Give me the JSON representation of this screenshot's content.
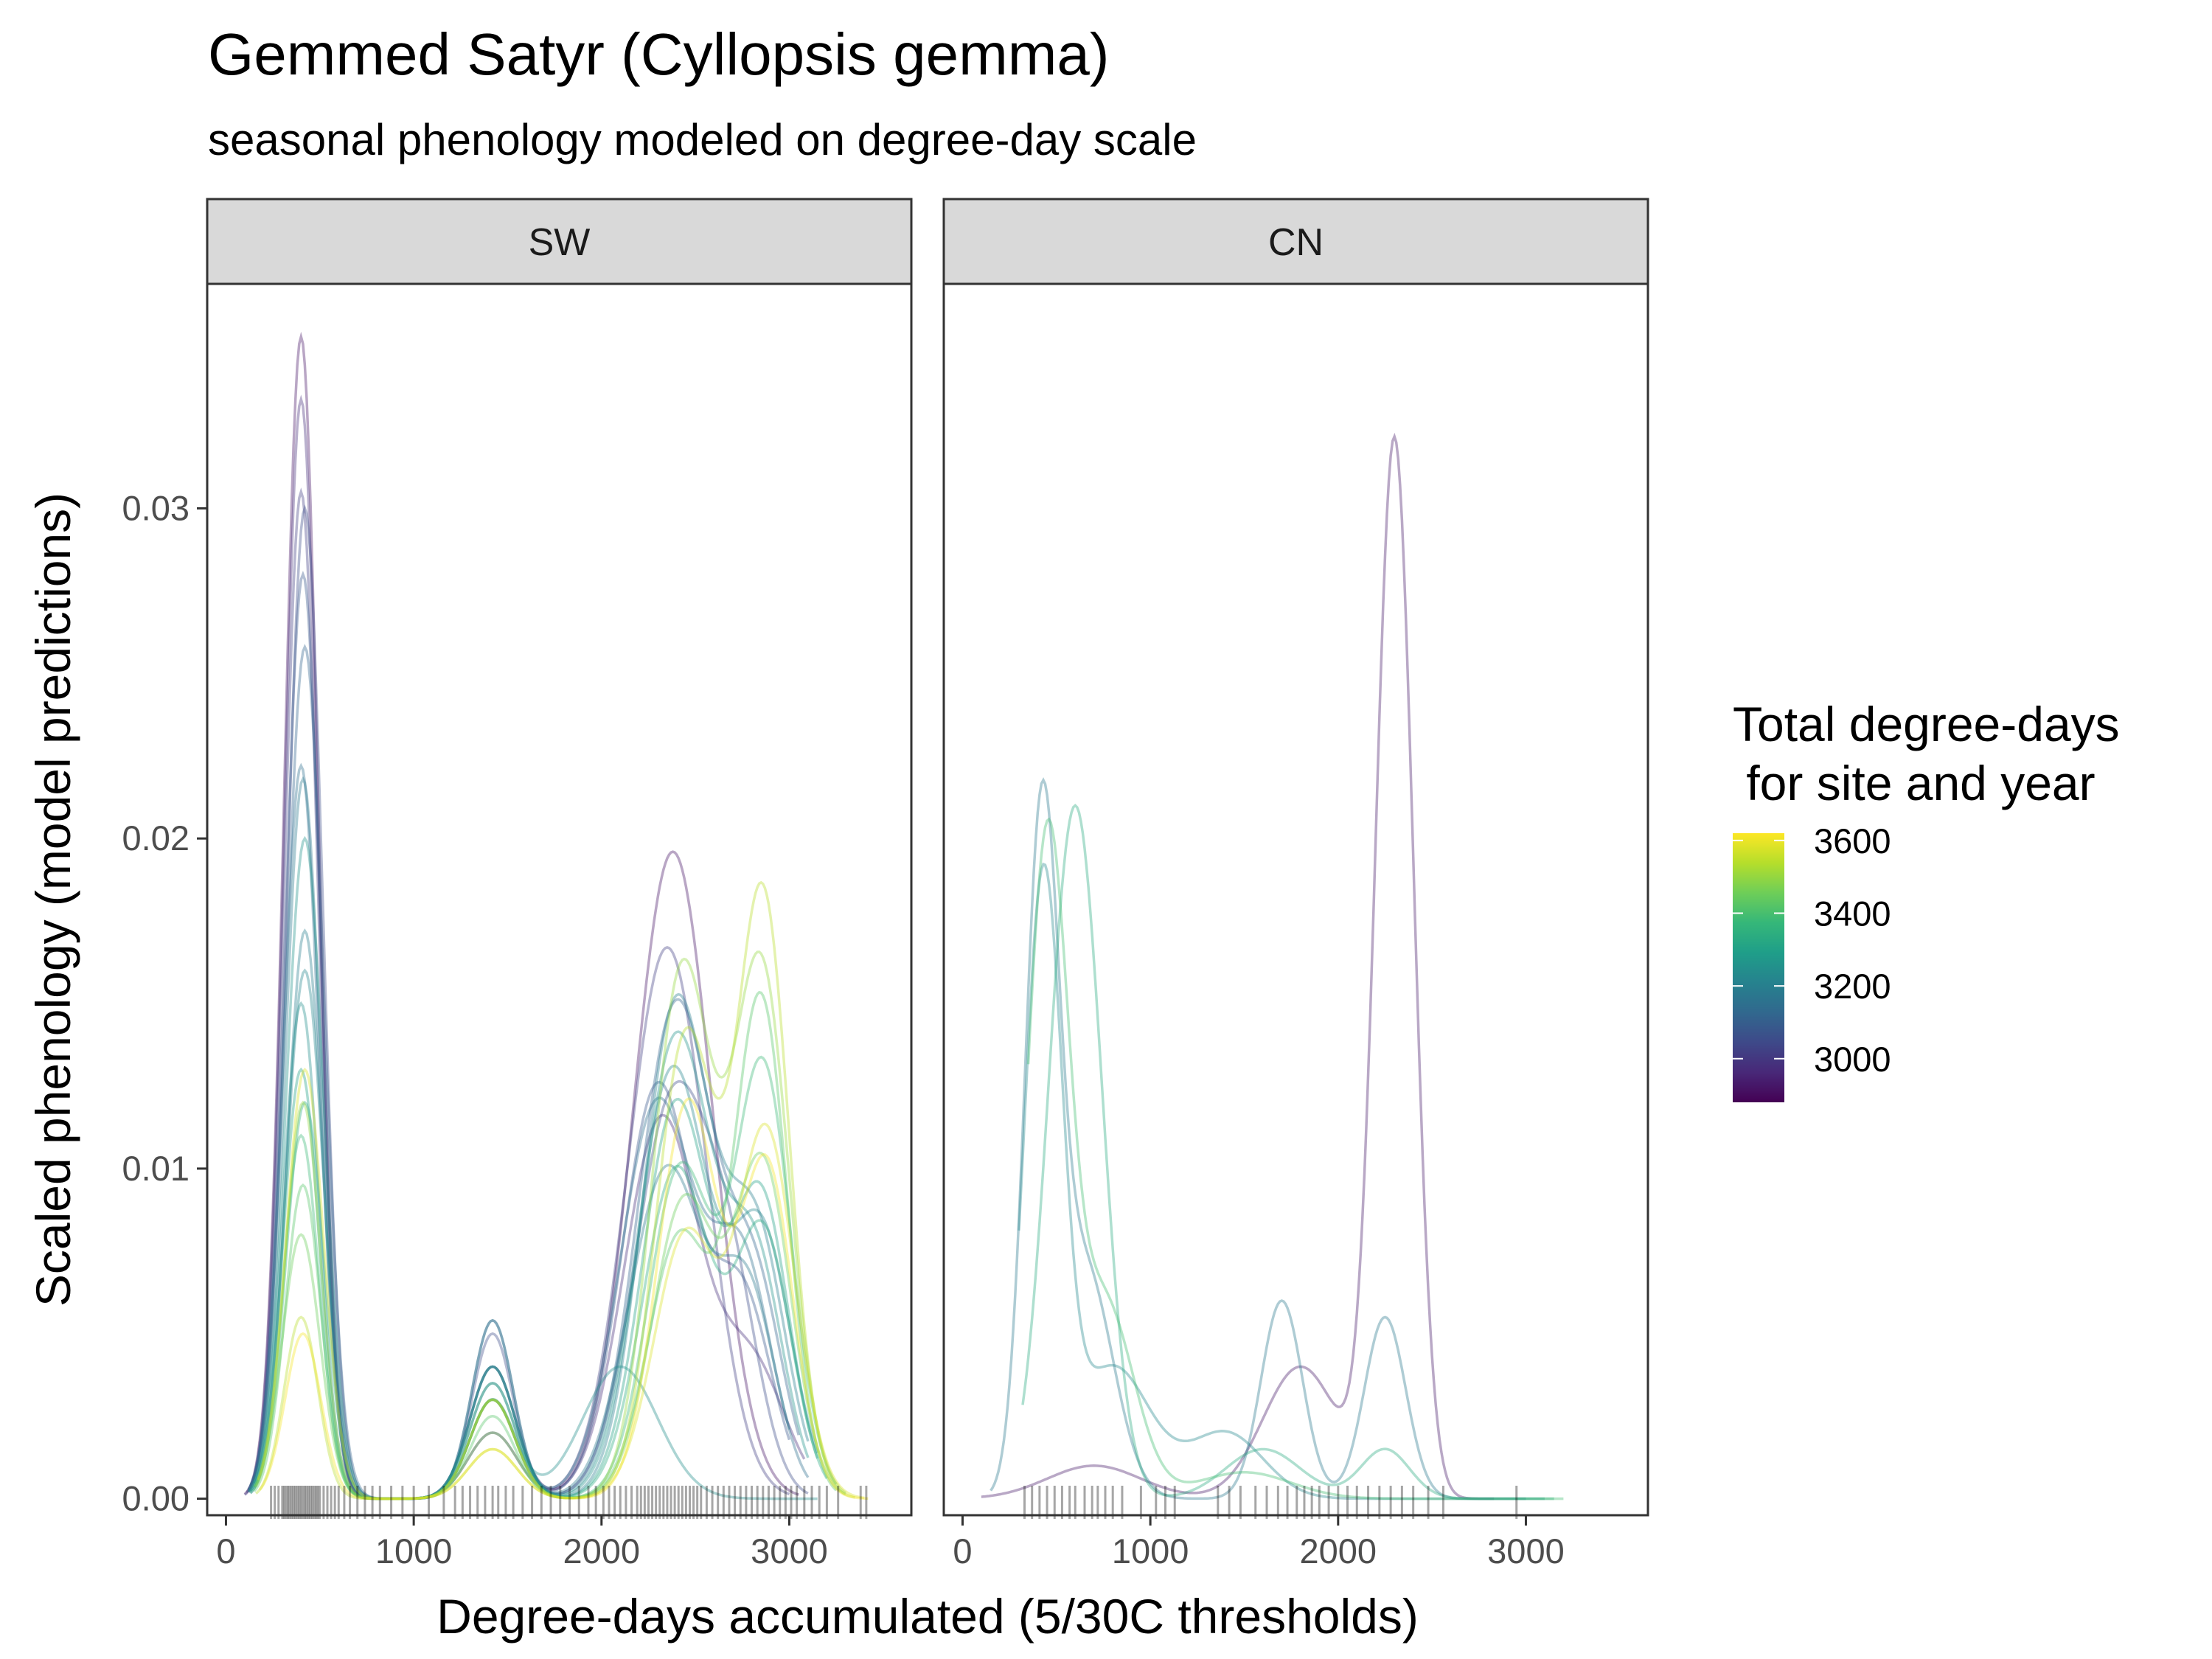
{
  "title": "Gemmed Satyr (Cyllopsis gemma)",
  "subtitle": "seasonal phenology modeled on degree-day scale",
  "chart_data": {
    "type": "line",
    "title": "Gemmed Satyr (Cyllopsis gemma)",
    "subtitle": "seasonal phenology modeled on degree-day scale",
    "xlabel": "Degree-days accumulated (5/30C thresholds)",
    "ylabel": "Scaled phenology (model predictions)",
    "xlim": [
      -100,
      3650
    ],
    "ylim": [
      -0.0005,
      0.0368
    ],
    "x_ticks": [
      0,
      1000,
      2000,
      3000
    ],
    "x_tick_labels": [
      "0",
      "1000",
      "2000",
      "3000"
    ],
    "y_ticks": [
      0,
      0.01,
      0.02,
      0.03
    ],
    "y_tick_labels": [
      "0.00",
      "0.01",
      "0.02",
      "0.03"
    ],
    "grid": false,
    "legend": {
      "title_lines": [
        "Total degree-days",
        " for site and year"
      ],
      "placement": "right",
      "type": "colorbar",
      "range": [
        2880,
        3620
      ],
      "ticks": [
        3000,
        3200,
        3400,
        3600
      ],
      "tick_labels": [
        "3000",
        "3200",
        "3400",
        "3600"
      ],
      "palette": [
        "#440154",
        "#482878",
        "#3e4989",
        "#31688e",
        "#26828e",
        "#1f9e89",
        "#35b779",
        "#6ece58",
        "#b5de2b",
        "#fde725"
      ]
    },
    "facets": [
      {
        "label": "SW",
        "series": [
          {
            "total": 2920,
            "peaks": [
              [
                400,
                0.0352,
                90
              ],
              [
                1420,
                0.002,
                130
              ],
              [
                2380,
                0.0196,
                210
              ]
            ],
            "range": [
              100,
              3050
            ]
          },
          {
            "total": 2980,
            "peaks": [
              [
                400,
                0.0333,
                90
              ],
              [
                1420,
                0.004,
                120
              ],
              [
                2320,
                0.0115,
                200
              ],
              [
                2800,
                0.004,
                180
              ]
            ],
            "range": [
              110,
              3080
            ]
          },
          {
            "total": 3020,
            "peaks": [
              [
                400,
                0.0305,
                90
              ],
              [
                1420,
                0.003,
                120
              ],
              [
                2350,
                0.0167,
                210
              ]
            ],
            "range": [
              100,
              3000
            ]
          },
          {
            "total": 3050,
            "peaks": [
              [
                420,
                0.03,
                95
              ],
              [
                1420,
                0.005,
                110
              ],
              [
                2380,
                0.012,
                200
              ],
              [
                2700,
                0.005,
                150
              ]
            ],
            "range": [
              120,
              3100
            ]
          },
          {
            "total": 3080,
            "peaks": [
              [
                410,
                0.028,
                95
              ],
              [
                1420,
                0.0054,
                110
              ],
              [
                2300,
                0.0125,
                190
              ],
              [
                2750,
                0.006,
                160
              ]
            ],
            "range": [
              120,
              3000
            ]
          },
          {
            "total": 3120,
            "peaks": [
              [
                420,
                0.0258,
                100
              ],
              [
                1420,
                0.004,
                120
              ],
              [
                2400,
                0.015,
                200
              ],
              [
                2820,
                0.006,
                150
              ]
            ],
            "range": [
              130,
              3050
            ]
          },
          {
            "total": 3150,
            "peaks": [
              [
                400,
                0.0222,
                95
              ],
              [
                1420,
                0.0035,
                120
              ],
              [
                2300,
                0.012,
                200
              ],
              [
                2750,
                0.007,
                160
              ]
            ],
            "range": [
              120,
              3100
            ]
          },
          {
            "total": 3180,
            "peaks": [
              [
                410,
                0.0218,
                95
              ],
              [
                1420,
                0.003,
                120
              ],
              [
                2350,
                0.01,
                200
              ],
              [
                2780,
                0.006,
                150
              ]
            ],
            "range": [
              120,
              3000
            ]
          },
          {
            "total": 3200,
            "peaks": [
              [
                420,
                0.0172,
                95
              ],
              [
                1420,
                0.0054,
                110
              ],
              [
                2400,
                0.015,
                180
              ],
              [
                2820,
                0.008,
                160
              ]
            ],
            "range": [
              130,
              3100
            ]
          },
          {
            "total": 3220,
            "peaks": [
              [
                420,
                0.016,
                100
              ],
              [
                1420,
                0.004,
                120
              ],
              [
                2380,
                0.013,
                190
              ],
              [
                2850,
                0.008,
                160
              ]
            ],
            "range": [
              130,
              3150
            ]
          },
          {
            "total": 3240,
            "peaks": [
              [
                400,
                0.015,
                95
              ],
              [
                1420,
                0.003,
                120
              ],
              [
                2100,
                0.004,
                200
              ]
            ],
            "range": [
              150,
              3150
            ]
          },
          {
            "total": 3260,
            "peaks": [
              [
                420,
                0.02,
                100
              ],
              [
                1420,
                0.004,
                120
              ],
              [
                2400,
                0.014,
                190
              ],
              [
                2820,
                0.007,
                150
              ]
            ],
            "range": [
              120,
              3100
            ]
          },
          {
            "total": 3300,
            "peaks": [
              [
                400,
                0.013,
                95
              ],
              [
                1420,
                0.003,
                120
              ],
              [
                2400,
                0.012,
                180
              ],
              [
                2850,
                0.009,
                150
              ]
            ],
            "range": [
              130,
              3150
            ]
          },
          {
            "total": 3330,
            "peaks": [
              [
                420,
                0.012,
                100
              ],
              [
                1420,
                0.0035,
                120
              ],
              [
                2400,
                0.01,
                180
              ],
              [
                2860,
                0.008,
                150
              ]
            ],
            "range": [
              130,
              3200
            ]
          },
          {
            "total": 3380,
            "peaks": [
              [
                400,
                0.011,
                95
              ],
              [
                1420,
                0.003,
                120
              ],
              [
                2420,
                0.01,
                170
              ],
              [
                2860,
                0.013,
                150
              ]
            ],
            "range": [
              150,
              3250
            ]
          },
          {
            "total": 3420,
            "peaks": [
              [
                410,
                0.0095,
                95
              ],
              [
                1420,
                0.0025,
                120
              ],
              [
                2420,
                0.008,
                170
              ],
              [
                2850,
                0.015,
                140
              ]
            ],
            "range": [
              150,
              3250
            ]
          },
          {
            "total": 3450,
            "peaks": [
              [
                400,
                0.008,
                100
              ],
              [
                1420,
                0.002,
                130
              ],
              [
                2440,
                0.009,
                170
              ],
              [
                2860,
                0.01,
                150
              ]
            ],
            "range": [
              150,
              3300
            ]
          },
          {
            "total": 3500,
            "peaks": [
              [
                410,
                0.012,
                95
              ],
              [
                1420,
                0.003,
                120
              ],
              [
                2430,
                0.016,
                160
              ],
              [
                2850,
                0.016,
                150
              ]
            ],
            "range": [
              160,
              3300
            ]
          },
          {
            "total": 3540,
            "peaks": [
              [
                400,
                0.0055,
                90
              ],
              [
                1420,
                0.0015,
                130
              ],
              [
                2450,
                0.014,
                160
              ],
              [
                2860,
                0.0181,
                140
              ]
            ],
            "range": [
              160,
              3350
            ]
          },
          {
            "total": 3580,
            "peaks": [
              [
                420,
                0.013,
                100
              ],
              [
                1420,
                0.003,
                120
              ],
              [
                2450,
                0.008,
                170
              ],
              [
                2880,
                0.011,
                150
              ]
            ],
            "range": [
              170,
              3400
            ]
          },
          {
            "total": 3610,
            "peaks": [
              [
                410,
                0.005,
                95
              ],
              [
                1420,
                0.0015,
                130
              ],
              [
                2460,
                0.012,
                160
              ],
              [
                2880,
                0.01,
                140
              ]
            ],
            "range": [
              180,
              3420
            ]
          }
        ],
        "rug": [
          240,
          260,
          280,
          300,
          310,
          320,
          330,
          340,
          350,
          360,
          370,
          380,
          390,
          400,
          410,
          420,
          430,
          440,
          450,
          460,
          470,
          480,
          490,
          500,
          520,
          540,
          560,
          580,
          600,
          630,
          660,
          700,
          740,
          780,
          820,
          880,
          940,
          1000,
          1080,
          1160,
          1220,
          1260,
          1300,
          1340,
          1380,
          1420,
          1450,
          1490,
          1530,
          1580,
          1630,
          1680,
          1730,
          1780,
          1830,
          1880,
          1930,
          1970,
          2010,
          2040,
          2070,
          2100,
          2130,
          2160,
          2190,
          2210,
          2230,
          2250,
          2270,
          2290,
          2310,
          2330,
          2350,
          2370,
          2390,
          2410,
          2430,
          2450,
          2470,
          2490,
          2510,
          2530,
          2560,
          2590,
          2620,
          2650,
          2680,
          2710,
          2740,
          2770,
          2800,
          2830,
          2860,
          2890,
          2920,
          2950,
          2980,
          3010,
          3040,
          3080,
          3120,
          3160,
          3200,
          3260,
          3380,
          3410
        ]
      },
      {
        "label": "CN",
        "series": [
          {
            "total": 2930,
            "peaks": [
              [
                700,
                0.001,
                250
              ],
              [
                1800,
                0.004,
                200
              ],
              [
                2300,
                0.032,
                100
              ]
            ],
            "range": [
              100,
              2830
            ]
          },
          {
            "total": 3180,
            "peaks": [
              [
                420,
                0.0195,
                90
              ],
              [
                650,
                0.007,
                150
              ],
              [
                1700,
                0.006,
                110
              ],
              [
                2250,
                0.0055,
                110
              ]
            ],
            "range": [
              150,
              3000
            ]
          },
          {
            "total": 3230,
            "peaks": [
              [
                430,
                0.0185,
                100
              ],
              [
                800,
                0.004,
                200
              ],
              [
                1400,
                0.002,
                200
              ]
            ],
            "range": [
              300,
              3100
            ]
          },
          {
            "total": 3330,
            "peaks": [
              [
                600,
                0.021,
                140
              ],
              [
                1600,
                0.0015,
                200
              ],
              [
                2250,
                0.0015,
                130
              ]
            ],
            "range": [
              320,
              3150
            ]
          },
          {
            "total": 3390,
            "peaks": [
              [
                450,
                0.0195,
                110
              ],
              [
                750,
                0.006,
                160
              ],
              [
                1500,
                0.0008,
                250
              ]
            ],
            "range": [
              350,
              3200
            ]
          }
        ],
        "rug": [
          330,
          370,
          410,
          450,
          490,
          530,
          570,
          600,
          650,
          690,
          720,
          760,
          800,
          850,
          950,
          1030,
          1080,
          1130,
          1360,
          1420,
          1480,
          1560,
          1620,
          1680,
          1730,
          1780,
          1820,
          1860,
          1900,
          1950,
          2000,
          2050,
          2100,
          2160,
          2220,
          2280,
          2340,
          2400,
          2480,
          2560,
          2950
        ]
      }
    ]
  }
}
